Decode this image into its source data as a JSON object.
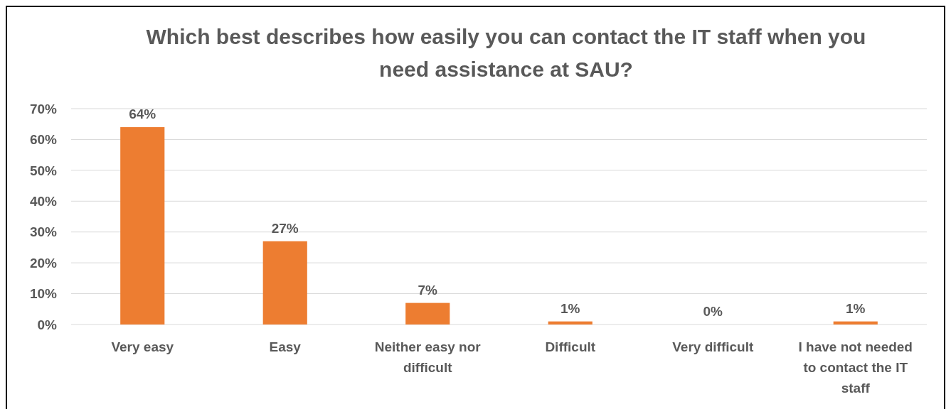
{
  "chart_data": {
    "type": "bar",
    "title": "Which best describes how easily you can contact the IT staff when you need assistance at SAU?",
    "categories": [
      "Very easy",
      "Easy",
      "Neither easy nor difficult",
      "Difficult",
      "Very difficult",
      "I have not needed to contact the IT staff"
    ],
    "values": [
      64,
      27,
      7,
      1,
      0,
      1
    ],
    "value_labels": [
      "64%",
      "27%",
      "7%",
      "1%",
      "0%",
      "1%"
    ],
    "color": "#ed7d31",
    "ylim": [
      0,
      70
    ],
    "yticks": [
      {
        "value": 0,
        "label": "0%"
      },
      {
        "value": 10,
        "label": "10%"
      },
      {
        "value": 20,
        "label": "20%"
      },
      {
        "value": 30,
        "label": "30%"
      },
      {
        "value": 40,
        "label": "40%"
      },
      {
        "value": 50,
        "label": "50%"
      },
      {
        "value": 60,
        "label": "60%"
      },
      {
        "value": 70,
        "label": "70%"
      }
    ],
    "grid": "y"
  }
}
